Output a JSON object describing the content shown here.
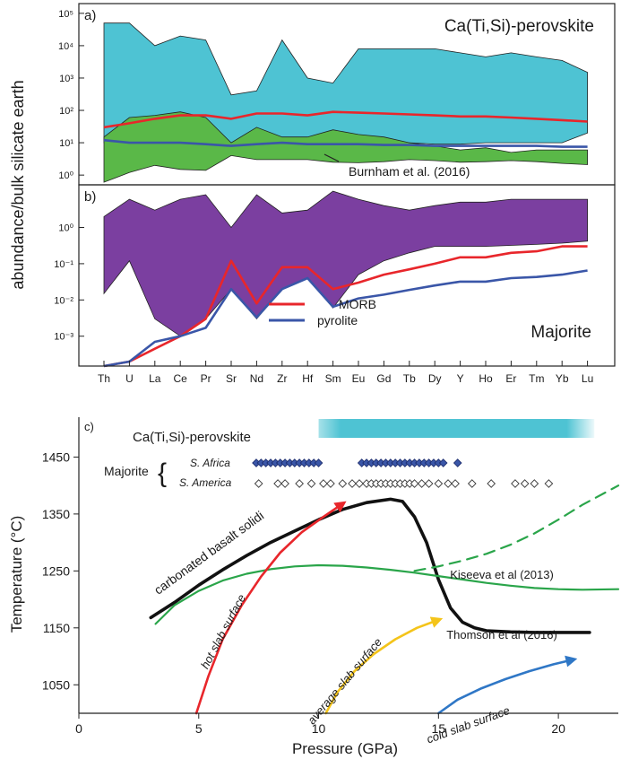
{
  "figure": {
    "shared_ylabel": "abundance/bulk silicate earth"
  },
  "chart_data": [
    {
      "panel": "a)",
      "type": "area",
      "title": "Ca(Ti,Si)-perovskite",
      "categories": [
        "Th",
        "U",
        "La",
        "Ce",
        "Pr",
        "Sr",
        "Nd",
        "Zr",
        "Hf",
        "Sm",
        "Eu",
        "Gd",
        "Tb",
        "Dy",
        "Y",
        "Ho",
        "Er",
        "Tm",
        "Yb",
        "Lu"
      ],
      "y_scale": "log",
      "ylim": [
        0.5,
        200000
      ],
      "ytick_labels": [
        "10⁰",
        "10¹",
        "10²",
        "10³",
        "10⁴",
        "10⁵"
      ],
      "ytick_values": [
        1,
        10,
        100,
        1000,
        10000,
        100000
      ],
      "colors": {
        "perovskite_field": "#4ec3d3",
        "burnham_field": "#5ab848",
        "morb": "#e8262b",
        "pyrolite": "#3a56a8"
      },
      "annotation": "Burnham et al. (2016)",
      "ranges": [
        {
          "id": "perovskite_field",
          "upper": [
            50000,
            50000,
            10000,
            20000,
            15000,
            300,
            400,
            15000,
            1000,
            700,
            8000,
            8000,
            8000,
            8000,
            6000,
            4500,
            6000,
            4500,
            3500,
            1500
          ],
          "lower": [
            10,
            15,
            25,
            30,
            20,
            10,
            20,
            10,
            8,
            12,
            10,
            10,
            10,
            9,
            9,
            10,
            10,
            10,
            10,
            20
          ]
        },
        {
          "id": "burnham_field",
          "upper": [
            15,
            60,
            70,
            90,
            60,
            10,
            30,
            15,
            15,
            25,
            18,
            15,
            10,
            8,
            6,
            7,
            5,
            6,
            6,
            6
          ],
          "lower": [
            0.6,
            1.2,
            2,
            1.5,
            1.4,
            4,
            3,
            3,
            3,
            2.5,
            2.4,
            2.6,
            3,
            2.8,
            2.5,
            2.6,
            2.8,
            2.6,
            2.3,
            2.1
          ]
        }
      ],
      "series": [
        {
          "id": "morb",
          "values": [
            30,
            40,
            55,
            70,
            70,
            55,
            80,
            80,
            70,
            90,
            85,
            80,
            75,
            70,
            65,
            65,
            60,
            55,
            50,
            45
          ]
        },
        {
          "id": "pyrolite",
          "values": [
            12,
            10,
            10,
            10,
            9,
            8,
            9,
            10,
            9,
            9,
            9,
            8.5,
            8.5,
            8,
            8,
            8,
            8,
            8,
            7.5,
            7.5
          ]
        }
      ]
    },
    {
      "panel": "b)",
      "type": "area",
      "title": "Majorite",
      "categories": [
        "Th",
        "U",
        "La",
        "Ce",
        "Pr",
        "Sr",
        "Nd",
        "Zr",
        "Hf",
        "Sm",
        "Eu",
        "Gd",
        "Tb",
        "Dy",
        "Y",
        "Ho",
        "Er",
        "Tm",
        "Yb",
        "Lu"
      ],
      "y_scale": "log",
      "ylim": [
        0.00015,
        15
      ],
      "ytick_labels": [
        "10⁻³",
        "10⁻²",
        "10⁻¹",
        "10⁰"
      ],
      "ytick_values": [
        0.001,
        0.01,
        0.1,
        1
      ],
      "colors": {
        "majorite_field": "#7b3fa0",
        "morb": "#e8262b",
        "pyrolite": "#3a56a8"
      },
      "legend": [
        {
          "id": "morb",
          "label": "MORB"
        },
        {
          "id": "pyrolite",
          "label": "pyrolite"
        }
      ],
      "ranges": [
        {
          "id": "majorite_field",
          "upper": [
            2,
            6,
            3,
            6,
            8,
            1,
            8,
            2.5,
            3,
            10,
            6,
            4,
            3,
            4,
            5,
            5,
            6,
            6,
            6,
            6
          ],
          "lower": [
            0.015,
            0.12,
            0.003,
            0.001,
            0.003,
            0.02,
            0.003,
            0.02,
            0.04,
            0.006,
            0.05,
            0.12,
            0.2,
            0.3,
            0.3,
            0.3,
            0.32,
            0.34,
            0.37,
            0.42
          ]
        }
      ],
      "series": [
        {
          "id": "morb",
          "values": [
            0.00015,
            0.0002,
            0.00045,
            0.001,
            0.003,
            0.12,
            0.008,
            0.08,
            0.08,
            0.02,
            0.03,
            0.05,
            0.07,
            0.1,
            0.15,
            0.15,
            0.2,
            0.22,
            0.3,
            0.3
          ]
        },
        {
          "id": "pyrolite",
          "values": [
            0.00015,
            0.0002,
            0.0007,
            0.001,
            0.0017,
            0.02,
            0.0033,
            0.02,
            0.04,
            0.0065,
            0.011,
            0.014,
            0.019,
            0.025,
            0.032,
            0.032,
            0.04,
            0.043,
            0.05,
            0.065
          ]
        }
      ]
    },
    {
      "panel": "c)",
      "type": "line",
      "xlabel": "Pressure (GPa)",
      "ylabel": "Temperature (°C)",
      "xlim": [
        0,
        22.5
      ],
      "ylim": [
        1000,
        1520
      ],
      "xticks": [
        0,
        5,
        10,
        15,
        20
      ],
      "yticks": [
        1050,
        1150,
        1250,
        1350,
        1450
      ],
      "perovskite_band": {
        "label": "Ca(Ti,Si)-perovskite",
        "x_from": 10,
        "x_to": 21.5,
        "color": "#4ec3d3"
      },
      "majorite_group_label": "Majorite",
      "inclusion_rows": [
        {
          "label": "S. Africa",
          "temperature": 1450,
          "style": "filled",
          "color": "#3a56a8",
          "pressures": [
            7.4,
            7.6,
            7.8,
            8.0,
            8.2,
            8.4,
            8.6,
            8.8,
            9.0,
            9.2,
            9.4,
            9.6,
            9.8,
            10.0,
            11.8,
            12.0,
            12.2,
            12.4,
            12.6,
            12.8,
            13.0,
            13.2,
            13.4,
            13.6,
            13.8,
            14.0,
            14.2,
            14.4,
            14.6,
            14.8,
            15.0,
            15.2,
            15.8
          ]
        },
        {
          "label": "S. America",
          "temperature": 1422,
          "style": "open",
          "color": "#3a3a3a",
          "pressures": [
            7.5,
            8.3,
            8.6,
            9.2,
            9.7,
            10.2,
            10.5,
            11.0,
            11.4,
            11.7,
            12.0,
            12.2,
            12.4,
            12.6,
            12.8,
            13.0,
            13.2,
            13.4,
            13.6,
            13.8,
            14.0,
            14.3,
            14.6,
            15.0,
            15.4,
            15.7,
            16.4,
            17.2,
            18.2,
            18.6,
            19.0,
            19.6
          ]
        }
      ],
      "series": [
        {
          "id": "carbonated-basalt-solidus",
          "label": "carbonated basalt solidi",
          "color": "#111111",
          "x": [
            3,
            4,
            5,
            6,
            7,
            8,
            9,
            10,
            11,
            12,
            13,
            13.5,
            14,
            14.5,
            15,
            15.5,
            16,
            16.5,
            17,
            18,
            19,
            20,
            21.3
          ],
          "y": [
            1168,
            1195,
            1225,
            1252,
            1277,
            1300,
            1320,
            1340,
            1358,
            1370,
            1376,
            1372,
            1345,
            1300,
            1235,
            1185,
            1160,
            1150,
            1145,
            1143,
            1142,
            1142,
            1142
          ]
        },
        {
          "id": "kiseeva-2013",
          "label": "Kiseeva et al (2013)",
          "color": "#2aa54a",
          "x": [
            3.2,
            4,
            5,
            6,
            7,
            8,
            9,
            10,
            11,
            12,
            13,
            14,
            15,
            16,
            17,
            18,
            19,
            20,
            21,
            22.5
          ],
          "y": [
            1157,
            1190,
            1215,
            1233,
            1245,
            1253,
            1258,
            1260,
            1259,
            1256,
            1252,
            1247,
            1241,
            1235,
            1229,
            1224,
            1220,
            1218,
            1217,
            1218
          ]
        },
        {
          "id": "green-dashed",
          "label": "",
          "color": "#2aa54a",
          "dashed": true,
          "x": [
            14,
            15,
            16,
            17,
            18,
            19,
            20,
            21,
            22.5
          ],
          "y": [
            1250,
            1258,
            1268,
            1280,
            1296,
            1316,
            1340,
            1366,
            1400
          ]
        },
        {
          "id": "thomson-2016",
          "label": "Thomson et al (2016)",
          "color": "#111111"
        }
      ],
      "slab_paths": [
        {
          "label": "hot slab surface",
          "color": "#e8262b",
          "x": [
            4.9,
            5.4,
            6.0,
            6.8,
            7.6,
            8.4,
            9.3,
            10.2,
            11
          ],
          "y": [
            1000,
            1065,
            1130,
            1190,
            1240,
            1282,
            1318,
            1345,
            1368
          ]
        },
        {
          "label": "average slab surface",
          "color": "#f4c41a",
          "x": [
            10.3,
            10.8,
            11.5,
            12.3,
            13.2,
            14.1,
            15.0
          ],
          "y": [
            1000,
            1038,
            1074,
            1104,
            1130,
            1150,
            1164
          ]
        },
        {
          "label": "cold slab surface",
          "color": "#2f77c6",
          "x": [
            15.0,
            15.8,
            16.8,
            17.8,
            18.8,
            19.8,
            20.6
          ],
          "y": [
            1000,
            1024,
            1044,
            1060,
            1074,
            1086,
            1094
          ]
        }
      ]
    }
  ]
}
